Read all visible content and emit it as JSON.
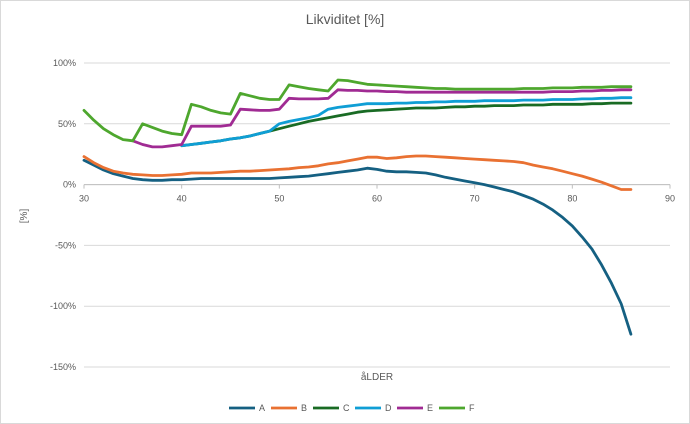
{
  "chart_data": {
    "type": "line",
    "title": "Likviditet [%]",
    "xlabel": "åLDER",
    "ylabel": "[%]",
    "xlim": [
      30,
      90
    ],
    "ylim": [
      -150,
      100
    ],
    "x_ticks": [
      30,
      40,
      50,
      60,
      70,
      80,
      90
    ],
    "y_ticks": [
      100,
      50,
      0,
      -50,
      -100,
      -150
    ],
    "y_tick_suffix": "%",
    "grid": "horizontal",
    "legend_position": "bottom",
    "series": [
      {
        "name": "A",
        "color": "#156082",
        "points": [
          [
            30,
            20
          ],
          [
            31,
            16
          ],
          [
            32,
            12
          ],
          [
            33,
            9
          ],
          [
            34,
            7
          ],
          [
            35,
            5
          ],
          [
            36,
            4
          ],
          [
            37,
            3.5
          ],
          [
            38,
            3.5
          ],
          [
            39,
            4
          ],
          [
            40,
            4
          ],
          [
            41,
            4.5
          ],
          [
            42,
            5
          ],
          [
            43,
            5
          ],
          [
            44,
            5
          ],
          [
            45,
            5
          ],
          [
            46,
            5
          ],
          [
            47,
            5
          ],
          [
            48,
            5
          ],
          [
            49,
            5
          ],
          [
            50,
            5.5
          ],
          [
            51,
            6
          ],
          [
            52,
            6.5
          ],
          [
            53,
            7
          ],
          [
            54,
            8
          ],
          [
            55,
            9
          ],
          [
            56,
            10
          ],
          [
            57,
            11
          ],
          [
            58,
            12
          ],
          [
            59,
            13.5
          ],
          [
            60,
            12.5
          ],
          [
            61,
            11
          ],
          [
            62,
            10.5
          ],
          [
            63,
            10.5
          ],
          [
            64,
            10
          ],
          [
            65,
            9.5
          ],
          [
            66,
            8
          ],
          [
            67,
            6
          ],
          [
            68,
            4.5
          ],
          [
            69,
            3
          ],
          [
            70,
            1.5
          ],
          [
            71,
            0
          ],
          [
            72,
            -2
          ],
          [
            73,
            -4
          ],
          [
            74,
            -6
          ],
          [
            75,
            -9
          ],
          [
            76,
            -12
          ],
          [
            77,
            -16
          ],
          [
            78,
            -21
          ],
          [
            79,
            -27
          ],
          [
            80,
            -34
          ],
          [
            81,
            -43
          ],
          [
            82,
            -53
          ],
          [
            83,
            -66
          ],
          [
            84,
            -81
          ],
          [
            85,
            -98
          ],
          [
            86,
            -123
          ]
        ]
      },
      {
        "name": "B",
        "color": "#E97132",
        "points": [
          [
            30,
            23
          ],
          [
            31,
            18
          ],
          [
            32,
            14
          ],
          [
            33,
            11
          ],
          [
            34,
            9.5
          ],
          [
            35,
            8.5
          ],
          [
            36,
            8
          ],
          [
            37,
            7.5
          ],
          [
            38,
            7.5
          ],
          [
            39,
            8
          ],
          [
            40,
            8.5
          ],
          [
            41,
            9.5
          ],
          [
            42,
            9.5
          ],
          [
            43,
            9.5
          ],
          [
            44,
            10
          ],
          [
            45,
            10.5
          ],
          [
            46,
            11
          ],
          [
            47,
            11
          ],
          [
            48,
            11.5
          ],
          [
            49,
            12
          ],
          [
            50,
            12.5
          ],
          [
            51,
            13
          ],
          [
            52,
            14
          ],
          [
            53,
            14.5
          ],
          [
            54,
            15.5
          ],
          [
            55,
            17
          ],
          [
            56,
            18
          ],
          [
            57,
            19.5
          ],
          [
            58,
            21
          ],
          [
            59,
            22.5
          ],
          [
            60,
            22.5
          ],
          [
            61,
            21.5
          ],
          [
            62,
            22
          ],
          [
            63,
            23
          ],
          [
            64,
            23.5
          ],
          [
            65,
            23.5
          ],
          [
            66,
            23
          ],
          [
            67,
            22.5
          ],
          [
            68,
            22
          ],
          [
            69,
            21.5
          ],
          [
            70,
            21
          ],
          [
            71,
            20.5
          ],
          [
            72,
            20
          ],
          [
            73,
            19.5
          ],
          [
            74,
            19
          ],
          [
            75,
            18
          ],
          [
            76,
            16
          ],
          [
            77,
            14.5
          ],
          [
            78,
            13
          ],
          [
            79,
            11
          ],
          [
            80,
            9
          ],
          [
            81,
            7
          ],
          [
            82,
            4.5
          ],
          [
            83,
            2
          ],
          [
            84,
            -1
          ],
          [
            85,
            -4
          ],
          [
            86,
            -4
          ]
        ]
      },
      {
        "name": "C",
        "color": "#196B24",
        "points": [
          [
            40,
            32
          ],
          [
            41,
            33
          ],
          [
            42,
            34
          ],
          [
            43,
            35
          ],
          [
            44,
            36
          ],
          [
            45,
            37.5
          ],
          [
            46,
            38.5
          ],
          [
            47,
            40
          ],
          [
            48,
            42
          ],
          [
            49,
            44
          ],
          [
            50,
            46
          ],
          [
            51,
            48
          ],
          [
            52,
            50
          ],
          [
            53,
            52
          ],
          [
            54,
            53.5
          ],
          [
            55,
            55
          ],
          [
            56,
            56.5
          ],
          [
            57,
            58
          ],
          [
            58,
            59.5
          ],
          [
            59,
            60.5
          ],
          [
            60,
            61
          ],
          [
            61,
            61.5
          ],
          [
            62,
            62
          ],
          [
            63,
            62.5
          ],
          [
            64,
            63
          ],
          [
            65,
            63
          ],
          [
            66,
            63
          ],
          [
            67,
            63.5
          ],
          [
            68,
            64
          ],
          [
            69,
            64
          ],
          [
            70,
            64.5
          ],
          [
            71,
            64.5
          ],
          [
            72,
            65
          ],
          [
            73,
            65
          ],
          [
            74,
            65
          ],
          [
            75,
            65.5
          ],
          [
            76,
            65.5
          ],
          [
            77,
            65.5
          ],
          [
            78,
            66
          ],
          [
            79,
            66
          ],
          [
            80,
            66
          ],
          [
            81,
            66
          ],
          [
            82,
            66.5
          ],
          [
            83,
            66.5
          ],
          [
            84,
            67
          ],
          [
            85,
            67
          ],
          [
            86,
            67
          ]
        ]
      },
      {
        "name": "D",
        "color": "#0F9ED5",
        "points": [
          [
            40,
            32
          ],
          [
            41,
            33
          ],
          [
            42,
            34
          ],
          [
            43,
            35
          ],
          [
            44,
            36
          ],
          [
            45,
            37.5
          ],
          [
            46,
            38.5
          ],
          [
            47,
            40
          ],
          [
            48,
            42
          ],
          [
            49,
            44
          ],
          [
            50,
            50
          ],
          [
            51,
            52
          ],
          [
            52,
            53.5
          ],
          [
            53,
            55
          ],
          [
            54,
            57
          ],
          [
            55,
            62
          ],
          [
            56,
            63.5
          ],
          [
            57,
            64.5
          ],
          [
            58,
            65.5
          ],
          [
            59,
            66.5
          ],
          [
            60,
            66.5
          ],
          [
            61,
            66.5
          ],
          [
            62,
            67
          ],
          [
            63,
            67
          ],
          [
            64,
            67.5
          ],
          [
            65,
            67.5
          ],
          [
            66,
            68
          ],
          [
            67,
            68
          ],
          [
            68,
            68.5
          ],
          [
            69,
            68.5
          ],
          [
            70,
            68.5
          ],
          [
            71,
            69
          ],
          [
            72,
            69
          ],
          [
            73,
            69
          ],
          [
            74,
            69
          ],
          [
            75,
            69.5
          ],
          [
            76,
            69.5
          ],
          [
            77,
            69.5
          ],
          [
            78,
            70
          ],
          [
            79,
            70
          ],
          [
            80,
            70
          ],
          [
            81,
            70.5
          ],
          [
            82,
            70.5
          ],
          [
            83,
            71
          ],
          [
            84,
            71
          ],
          [
            85,
            71.5
          ],
          [
            86,
            71.5
          ]
        ]
      },
      {
        "name": "E",
        "color": "#A02B93",
        "points": [
          [
            35,
            36
          ],
          [
            36,
            33
          ],
          [
            37,
            31
          ],
          [
            38,
            31
          ],
          [
            39,
            32
          ],
          [
            40,
            33
          ],
          [
            41,
            48
          ],
          [
            42,
            48
          ],
          [
            43,
            48
          ],
          [
            44,
            48
          ],
          [
            45,
            49
          ],
          [
            46,
            62
          ],
          [
            47,
            61.5
          ],
          [
            48,
            61
          ],
          [
            49,
            61
          ],
          [
            50,
            62
          ],
          [
            51,
            71
          ],
          [
            52,
            70.5
          ],
          [
            53,
            70.5
          ],
          [
            54,
            70.5
          ],
          [
            55,
            71
          ],
          [
            56,
            78
          ],
          [
            57,
            77.5
          ],
          [
            58,
            77.5
          ],
          [
            59,
            77
          ],
          [
            60,
            77
          ],
          [
            61,
            76.5
          ],
          [
            62,
            76.5
          ],
          [
            63,
            76
          ],
          [
            64,
            76
          ],
          [
            65,
            76
          ],
          [
            66,
            76
          ],
          [
            67,
            76
          ],
          [
            68,
            76
          ],
          [
            69,
            76
          ],
          [
            70,
            76
          ],
          [
            71,
            76
          ],
          [
            72,
            76
          ],
          [
            73,
            76
          ],
          [
            74,
            76
          ],
          [
            75,
            76
          ],
          [
            76,
            76
          ],
          [
            77,
            76
          ],
          [
            78,
            76.5
          ],
          [
            79,
            76.5
          ],
          [
            80,
            76.5
          ],
          [
            81,
            77
          ],
          [
            82,
            77
          ],
          [
            83,
            77.5
          ],
          [
            84,
            77.5
          ],
          [
            85,
            78
          ],
          [
            86,
            78
          ]
        ]
      },
      {
        "name": "F",
        "color": "#4EA72E",
        "points": [
          [
            30,
            61
          ],
          [
            31,
            53
          ],
          [
            32,
            46
          ],
          [
            33,
            41
          ],
          [
            34,
            37
          ],
          [
            35,
            36
          ],
          [
            36,
            50
          ],
          [
            37,
            47
          ],
          [
            38,
            44
          ],
          [
            39,
            42
          ],
          [
            40,
            41
          ],
          [
            41,
            66
          ],
          [
            42,
            64
          ],
          [
            43,
            61
          ],
          [
            44,
            59
          ],
          [
            45,
            58
          ],
          [
            46,
            75
          ],
          [
            47,
            73
          ],
          [
            48,
            71
          ],
          [
            49,
            70
          ],
          [
            50,
            70
          ],
          [
            51,
            82
          ],
          [
            52,
            80.5
          ],
          [
            53,
            79
          ],
          [
            54,
            78
          ],
          [
            55,
            77
          ],
          [
            56,
            86
          ],
          [
            57,
            85.5
          ],
          [
            58,
            84
          ],
          [
            59,
            82.5
          ],
          [
            60,
            82
          ],
          [
            61,
            81.5
          ],
          [
            62,
            81
          ],
          [
            63,
            80.5
          ],
          [
            64,
            80
          ],
          [
            65,
            79.5
          ],
          [
            66,
            79
          ],
          [
            67,
            79
          ],
          [
            68,
            78.5
          ],
          [
            69,
            78.5
          ],
          [
            70,
            78.5
          ],
          [
            71,
            78.5
          ],
          [
            72,
            78.5
          ],
          [
            73,
            78.5
          ],
          [
            74,
            78.5
          ],
          [
            75,
            79
          ],
          [
            76,
            79
          ],
          [
            77,
            79
          ],
          [
            78,
            79.5
          ],
          [
            79,
            79.5
          ],
          [
            80,
            79.5
          ],
          [
            81,
            80
          ],
          [
            82,
            80
          ],
          [
            83,
            80
          ],
          [
            84,
            80.5
          ],
          [
            85,
            80.5
          ],
          [
            86,
            80.5
          ]
        ]
      }
    ]
  }
}
